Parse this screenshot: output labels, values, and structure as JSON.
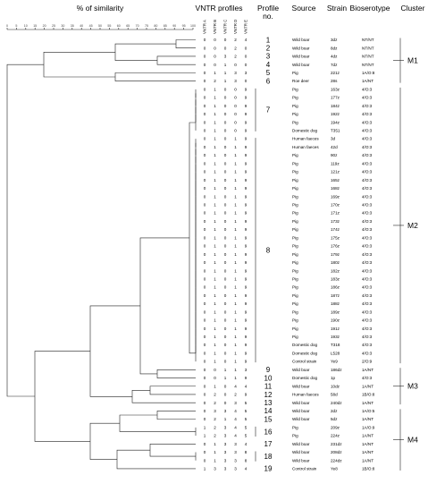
{
  "headers": {
    "similarity": "% of similarity",
    "vntr": "VNTR profiles",
    "profile": "Profile\nno.",
    "source": "Source",
    "strain": "Strain",
    "bioserotype": "Bioserotype",
    "cluster": "Cluster"
  },
  "vntr_loci": [
    "VNTR A",
    "VNTR B",
    "VNTR C",
    "VNTR D",
    "VNTR E"
  ],
  "scale_ticks": [
    "0",
    "5",
    "10",
    "15",
    "20",
    "25",
    "30",
    "35",
    "40",
    "45",
    "50",
    "55",
    "60",
    "65",
    "70",
    "75",
    "80",
    "85",
    "90",
    "95",
    "100"
  ],
  "rows": [
    {
      "vntr": [
        "0",
        "0",
        "0",
        "2",
        "4"
      ],
      "source": "Wild boar",
      "strain": "3dz",
      "bio": "NT/NT"
    },
    {
      "vntr": [
        "0",
        "0",
        "0",
        "2",
        "0"
      ],
      "source": "Wild boar",
      "strain": "8dz",
      "bio": "NT/NT"
    },
    {
      "vntr": [
        "0",
        "0",
        "3",
        "2",
        "0"
      ],
      "source": "Wild boar",
      "strain": "4dz",
      "bio": "NT/NT"
    },
    {
      "vntr": [
        "0",
        "0",
        "1",
        "0",
        "0"
      ],
      "source": "Wild boar",
      "strain": "7dz",
      "bio": "NT/NT"
    },
    {
      "vntr": [
        "0",
        "1",
        "1",
        "3",
        "3"
      ],
      "source": "Pig",
      "strain": "221z",
      "bio": "1A/O:8"
    },
    {
      "vntr": [
        "0",
        "2",
        "1",
        "3",
        "0"
      ],
      "source": "Roe deer",
      "strain": "28s",
      "bio": "1A/NT"
    },
    {
      "vntr": [
        "0",
        "1",
        "0",
        "0",
        "9"
      ],
      "source": "Pig",
      "strain": "163z",
      "bio": "4/O:3"
    },
    {
      "vntr": [
        "0",
        "1",
        "0",
        "0",
        "9"
      ],
      "source": "Pig",
      "strain": "177z",
      "bio": "4/O:3"
    },
    {
      "vntr": [
        "0",
        "1",
        "0",
        "0",
        "9"
      ],
      "source": "Pig",
      "strain": "184z",
      "bio": "4/O:3"
    },
    {
      "vntr": [
        "0",
        "1",
        "0",
        "0",
        "9"
      ],
      "source": "Pig",
      "strain": "192z",
      "bio": "4/O:3"
    },
    {
      "vntr": [
        "0",
        "1",
        "0",
        "0",
        "9"
      ],
      "source": "Pig",
      "strain": "194z",
      "bio": "4/O:3"
    },
    {
      "vntr": [
        "0",
        "1",
        "0",
        "0",
        "9"
      ],
      "source": "Domestic dog",
      "strain": "T351",
      "bio": "4/O:3"
    },
    {
      "vntr": [
        "0",
        "1",
        "0",
        "1",
        "9"
      ],
      "source": "Human faeces",
      "strain": "3d",
      "bio": "4/O:3"
    },
    {
      "vntr": [
        "0",
        "1",
        "0",
        "1",
        "9"
      ],
      "source": "Human faeces",
      "strain": "42d",
      "bio": "4/O:3"
    },
    {
      "vntr": [
        "0",
        "1",
        "0",
        "1",
        "9"
      ],
      "source": "Pig",
      "strain": "90z",
      "bio": "4/O:3"
    },
    {
      "vntr": [
        "0",
        "1",
        "0",
        "1",
        "9"
      ],
      "source": "Pig",
      "strain": "119z",
      "bio": "4/O:3"
    },
    {
      "vntr": [
        "0",
        "1",
        "0",
        "1",
        "9"
      ],
      "source": "Pig",
      "strain": "121z",
      "bio": "4/O:3"
    },
    {
      "vntr": [
        "0",
        "1",
        "0",
        "1",
        "9"
      ],
      "source": "Pig",
      "strain": "165z",
      "bio": "4/O:3"
    },
    {
      "vntr": [
        "0",
        "1",
        "0",
        "1",
        "9"
      ],
      "source": "Pig",
      "strain": "168z",
      "bio": "4/O:3"
    },
    {
      "vntr": [
        "0",
        "1",
        "0",
        "1",
        "9"
      ],
      "source": "Pig",
      "strain": "169z",
      "bio": "4/O:3"
    },
    {
      "vntr": [
        "0",
        "1",
        "0",
        "1",
        "9"
      ],
      "source": "Pig",
      "strain": "170z",
      "bio": "4/O:3"
    },
    {
      "vntr": [
        "0",
        "1",
        "0",
        "1",
        "9"
      ],
      "source": "Pig",
      "strain": "171z",
      "bio": "4/O:3"
    },
    {
      "vntr": [
        "0",
        "1",
        "0",
        "1",
        "9"
      ],
      "source": "Pig",
      "strain": "173z",
      "bio": "4/O:3"
    },
    {
      "vntr": [
        "0",
        "1",
        "0",
        "1",
        "9"
      ],
      "source": "Pig",
      "strain": "174z",
      "bio": "4/O:3"
    },
    {
      "vntr": [
        "0",
        "1",
        "0",
        "1",
        "9"
      ],
      "source": "Pig",
      "strain": "175z",
      "bio": "4/O:3"
    },
    {
      "vntr": [
        "0",
        "1",
        "0",
        "1",
        "9"
      ],
      "source": "Pig",
      "strain": "176z",
      "bio": "4/O:3"
    },
    {
      "vntr": [
        "0",
        "1",
        "0",
        "1",
        "9"
      ],
      "source": "Pig",
      "strain": "179z",
      "bio": "4/O:3"
    },
    {
      "vntr": [
        "0",
        "1",
        "0",
        "1",
        "9"
      ],
      "source": "Pig",
      "strain": "180z",
      "bio": "4/O:3"
    },
    {
      "vntr": [
        "0",
        "1",
        "0",
        "1",
        "9"
      ],
      "source": "Pig",
      "strain": "182z",
      "bio": "4/O:3"
    },
    {
      "vntr": [
        "0",
        "1",
        "0",
        "1",
        "9"
      ],
      "source": "Pig",
      "strain": "183z",
      "bio": "4/O:3"
    },
    {
      "vntr": [
        "0",
        "1",
        "0",
        "1",
        "9"
      ],
      "source": "Pig",
      "strain": "186z",
      "bio": "4/O:3"
    },
    {
      "vntr": [
        "0",
        "1",
        "0",
        "1",
        "9"
      ],
      "source": "Pig",
      "strain": "187z",
      "bio": "4/O:3"
    },
    {
      "vntr": [
        "0",
        "1",
        "0",
        "1",
        "9"
      ],
      "source": "Pig",
      "strain": "188z",
      "bio": "4/O:3"
    },
    {
      "vntr": [
        "0",
        "1",
        "0",
        "1",
        "9"
      ],
      "source": "Pig",
      "strain": "189z",
      "bio": "4/O:3"
    },
    {
      "vntr": [
        "0",
        "1",
        "0",
        "1",
        "9"
      ],
      "source": "Pig",
      "strain": "190z",
      "bio": "4/O:3"
    },
    {
      "vntr": [
        "0",
        "1",
        "0",
        "1",
        "9"
      ],
      "source": "Pig",
      "strain": "191z",
      "bio": "4/O:3"
    },
    {
      "vntr": [
        "0",
        "1",
        "0",
        "1",
        "9"
      ],
      "source": "Pig",
      "strain": "193z",
      "bio": "4/O:3"
    },
    {
      "vntr": [
        "0",
        "1",
        "0",
        "1",
        "9"
      ],
      "source": "Domestic dog",
      "strain": "T318",
      "bio": "4/O:3"
    },
    {
      "vntr": [
        "0",
        "1",
        "0",
        "1",
        "9"
      ],
      "source": "Domestic dog",
      "strain": "L528",
      "bio": "4/O:3"
    },
    {
      "vntr": [
        "0",
        "1",
        "0",
        "1",
        "9"
      ],
      "source": "Control strain",
      "strain": "Ye9",
      "bio": "2/O:9"
    },
    {
      "vntr": [
        "0",
        "0",
        "1",
        "1",
        "3"
      ],
      "source": "Wild boar",
      "strain": "186dz",
      "bio": "1A/NT"
    },
    {
      "vntr": [
        "0",
        "0",
        "1",
        "1",
        "9"
      ],
      "source": "Domestic dog",
      "strain": "1p",
      "bio": "4/O:3"
    },
    {
      "vntr": [
        "0",
        "1",
        "0",
        "4",
        "4"
      ],
      "source": "Wild boar",
      "strain": "10dz",
      "bio": "1A/NT"
    },
    {
      "vntr": [
        "0",
        "2",
        "0",
        "2",
        "9"
      ],
      "source": "Human faeces",
      "strain": "58d",
      "bio": "1B/O:8"
    },
    {
      "vntr": [
        "0",
        "2",
        "0",
        "3",
        "5"
      ],
      "source": "Wild boar",
      "strain": "240dz",
      "bio": "1A/NT"
    },
    {
      "vntr": [
        "0",
        "3",
        "3",
        "4",
        "5"
      ],
      "source": "Wild boar",
      "strain": "2dz",
      "bio": "1A/O:5"
    },
    {
      "vntr": [
        "0",
        "2",
        "1",
        "4",
        "5"
      ],
      "source": "Wild boar",
      "strain": "5dz",
      "bio": "1A/NT"
    },
    {
      "vntr": [
        "1",
        "2",
        "3",
        "4",
        "5"
      ],
      "source": "Pig",
      "strain": "209z",
      "bio": "1A/O:9"
    },
    {
      "vntr": [
        "1",
        "2",
        "3",
        "4",
        "5"
      ],
      "source": "Pig",
      "strain": "224z",
      "bio": "1A/NT"
    },
    {
      "vntr": [
        "0",
        "1",
        "3",
        "3",
        "4"
      ],
      "source": "Wild boar",
      "strain": "231dz",
      "bio": "1A/NT"
    },
    {
      "vntr": [
        "0",
        "1",
        "3",
        "3",
        "8"
      ],
      "source": "Wild boar",
      "strain": "208dz",
      "bio": "1A/NT"
    },
    {
      "vntr": [
        "0",
        "1",
        "3",
        "3",
        "8"
      ],
      "source": "Wild boar",
      "strain": "224dz",
      "bio": "1A/NT"
    },
    {
      "vntr": [
        "1",
        "3",
        "3",
        "3",
        "4"
      ],
      "source": "Control strain",
      "strain": "Ye8",
      "bio": "1B/O:8"
    }
  ],
  "profiles": [
    {
      "label": "1",
      "rows": [
        0,
        0
      ]
    },
    {
      "label": "2",
      "rows": [
        1,
        1
      ]
    },
    {
      "label": "3",
      "rows": [
        2,
        2
      ]
    },
    {
      "label": "4",
      "rows": [
        3,
        3
      ]
    },
    {
      "label": "5",
      "rows": [
        4,
        4
      ]
    },
    {
      "label": "6",
      "rows": [
        5,
        5
      ]
    },
    {
      "label": "7",
      "rows": [
        6,
        11
      ]
    },
    {
      "label": "8",
      "rows": [
        12,
        39
      ]
    },
    {
      "label": "9",
      "rows": [
        40,
        40
      ]
    },
    {
      "label": "10",
      "rows": [
        41,
        41
      ]
    },
    {
      "label": "11",
      "rows": [
        42,
        42
      ]
    },
    {
      "label": "12",
      "rows": [
        43,
        43
      ]
    },
    {
      "label": "13",
      "rows": [
        44,
        44
      ]
    },
    {
      "label": "14",
      "rows": [
        45,
        45
      ]
    },
    {
      "label": "15",
      "rows": [
        46,
        46
      ]
    },
    {
      "label": "16",
      "rows": [
        47,
        48
      ]
    },
    {
      "label": "17",
      "rows": [
        49,
        49
      ]
    },
    {
      "label": "18",
      "rows": [
        50,
        51
      ]
    },
    {
      "label": "19",
      "rows": [
        52,
        52
      ]
    }
  ],
  "clusters": [
    {
      "label": "M1",
      "rows": [
        0,
        5
      ]
    },
    {
      "label": "M2",
      "rows": [
        6,
        39
      ]
    },
    {
      "label": "M3",
      "rows": [
        40,
        44
      ]
    },
    {
      "label": "M4",
      "rows": [
        45,
        52
      ]
    }
  ]
}
